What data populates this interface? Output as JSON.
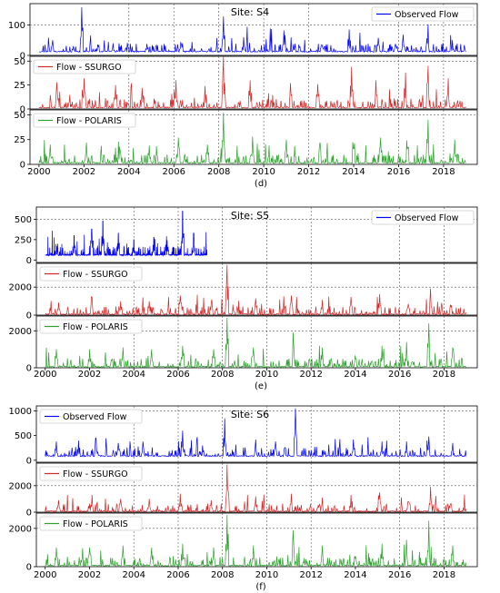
{
  "chart_data": [
    {
      "type": "line",
      "title": "Site: S4",
      "caption": "(d)",
      "x_ticks": [
        "2000",
        "2002",
        "2004",
        "2006",
        "2008",
        "2010",
        "2012",
        "2014",
        "2016",
        "2018"
      ],
      "xlim": [
        1999.6,
        2019.5
      ],
      "panels": [
        {
          "series_name": "Observed Flow",
          "color": "#0000ff",
          "legend": "top-right",
          "ylim": [
            0,
            170
          ],
          "y_ticks": [
            0,
            100
          ],
          "y_tick_labels": [
            "0",
            "100"
          ],
          "base": 11,
          "peak_years": [
            2000.6,
            2001.9,
            2002.6,
            2003.3,
            2004.8,
            2006.3,
            2008.2,
            2009.1,
            2010.9,
            2012.6,
            2013.8,
            2015.1,
            2016.2,
            2017.3,
            2018.4
          ],
          "peak_values": [
            50,
            158,
            55,
            40,
            38,
            42,
            128,
            60,
            82,
            55,
            85,
            58,
            68,
            102,
            50
          ],
          "seed": 11
        },
        {
          "series_name": "Flow - SSURGO",
          "color": "#d62728",
          "legend": "top-left",
          "ylim": [
            0,
            55
          ],
          "y_ticks": [
            0,
            25,
            50
          ],
          "y_tick_labels": [
            "0",
            "25",
            "50"
          ],
          "base": 1,
          "peak_years": [
            2000.8,
            2002.0,
            2003.4,
            2004.6,
            2006.1,
            2007.4,
            2008.2,
            2009.4,
            2011.2,
            2012.4,
            2013.9,
            2015.0,
            2016.3,
            2017.3,
            2018.2
          ],
          "peak_values": [
            28,
            32,
            25,
            22,
            30,
            24,
            55,
            30,
            27,
            26,
            44,
            30,
            38,
            45,
            32
          ],
          "seed": 23
        },
        {
          "series_name": "Flow - POLARIS",
          "color": "#2ca02c",
          "legend": "top-left",
          "ylim": [
            0,
            55
          ],
          "y_ticks": [
            0,
            25,
            50
          ],
          "y_tick_labels": [
            "0",
            "25",
            "50"
          ],
          "base": 1,
          "peak_years": [
            2000.5,
            2002.1,
            2003.6,
            2004.9,
            2006.2,
            2007.5,
            2008.2,
            2009.5,
            2011.0,
            2012.5,
            2014.0,
            2015.2,
            2016.4,
            2017.3,
            2018.5
          ],
          "peak_values": [
            20,
            22,
            18,
            19,
            27,
            20,
            52,
            28,
            25,
            22,
            35,
            27,
            38,
            45,
            25
          ],
          "seed": 37
        }
      ]
    },
    {
      "type": "line",
      "title": "Site: S5",
      "caption": "(e)",
      "x_ticks": [
        "2000",
        "2002",
        "2004",
        "2006",
        "2008",
        "2010",
        "2012",
        "2014",
        "2016",
        "2018"
      ],
      "xlim": [
        1999.6,
        2019.5
      ],
      "panels": [
        {
          "series_name": "Observed Flow",
          "color": "#0000ff",
          "legend": "top-right",
          "ylim": [
            -30,
            650
          ],
          "y_ticks": [
            0,
            250,
            500
          ],
          "y_tick_labels": [
            "0",
            "250",
            "500"
          ],
          "x_end": 2007.3,
          "base": 55,
          "peak_years": [
            2000.5,
            2001.3,
            2002.1,
            2002.6,
            2003.3,
            2004.0,
            2004.9,
            2005.5,
            2006.2,
            2006.7
          ],
          "peak_values": [
            160,
            300,
            380,
            480,
            330,
            250,
            280,
            240,
            600,
            330
          ],
          "seed": 51
        },
        {
          "series_name": "Flow - SSURGO",
          "color": "#d62728",
          "legend": "top-left",
          "ylim": [
            0,
            3700
          ],
          "y_ticks": [
            0,
            2000
          ],
          "y_tick_labels": [
            "0",
            "2000"
          ],
          "base": 30,
          "peak_years": [
            2000.6,
            2002.1,
            2003.4,
            2004.7,
            2006.1,
            2007.5,
            2008.2,
            2009.5,
            2011.1,
            2012.5,
            2013.8,
            2015.1,
            2016.4,
            2017.4,
            2018.3
          ],
          "peak_values": [
            900,
            1300,
            1000,
            1000,
            1400,
            900,
            3600,
            1200,
            1400,
            1100,
            1300,
            1500,
            1300,
            1900,
            1200
          ],
          "seed": 63
        },
        {
          "series_name": "Flow - POLARIS",
          "color": "#2ca02c",
          "legend": "top-left",
          "ylim": [
            0,
            2800
          ],
          "y_ticks": [
            0,
            2000
          ],
          "y_tick_labels": [
            "0",
            "2000"
          ],
          "base": 30,
          "peak_years": [
            2000.5,
            2002.0,
            2003.5,
            2004.8,
            2006.2,
            2007.6,
            2008.2,
            2009.4,
            2011.2,
            2012.5,
            2014.0,
            2015.2,
            2016.3,
            2017.3,
            2018.4
          ],
          "peak_values": [
            1000,
            1000,
            1100,
            1000,
            1200,
            1000,
            2700,
            1100,
            1900,
            1100,
            1100,
            1200,
            1400,
            2400,
            1100
          ],
          "seed": 77
        }
      ]
    },
    {
      "type": "line",
      "title": "Site: S6",
      "caption": "(f)",
      "x_ticks": [
        "2000",
        "2002",
        "2004",
        "2006",
        "2008",
        "2010",
        "2012",
        "2014",
        "2016",
        "2018"
      ],
      "xlim": [
        1999.6,
        2019.5
      ],
      "panels": [
        {
          "series_name": "Observed Flow",
          "color": "#0000ff",
          "legend": "top-left",
          "ylim": [
            -40,
            1100
          ],
          "y_ticks": [
            0,
            500,
            1000
          ],
          "y_tick_labels": [
            "0",
            "500",
            "1000"
          ],
          "base": 75,
          "peak_years": [
            2000.5,
            2001.5,
            2002.3,
            2003.3,
            2004.4,
            2006.2,
            2007.1,
            2008.1,
            2009.5,
            2010.4,
            2011.3,
            2012.6,
            2013.9,
            2015.2,
            2016.3,
            2017.3,
            2018.4
          ],
          "peak_values": [
            380,
            400,
            450,
            350,
            380,
            600,
            300,
            850,
            420,
            380,
            1050,
            380,
            420,
            380,
            380,
            480,
            350
          ],
          "seed": 91
        },
        {
          "series_name": "Flow - SSURGO",
          "color": "#d62728",
          "legend": "top-left",
          "ylim": [
            0,
            3700
          ],
          "y_ticks": [
            0,
            2000
          ],
          "y_tick_labels": [
            "0",
            "2000"
          ],
          "base": 30,
          "peak_years": [
            2000.6,
            2002.1,
            2003.4,
            2004.7,
            2006.1,
            2007.5,
            2008.2,
            2009.5,
            2011.1,
            2012.5,
            2013.8,
            2015.1,
            2016.4,
            2017.4,
            2018.3
          ],
          "peak_values": [
            900,
            1300,
            1000,
            1000,
            1400,
            900,
            3600,
            1200,
            1400,
            1100,
            1300,
            1500,
            1300,
            1900,
            1200
          ],
          "seed": 103
        },
        {
          "series_name": "Flow - POLARIS",
          "color": "#2ca02c",
          "legend": "top-left",
          "ylim": [
            0,
            2800
          ],
          "y_ticks": [
            0,
            2000
          ],
          "y_tick_labels": [
            "0",
            "2000"
          ],
          "base": 30,
          "peak_years": [
            2000.5,
            2002.0,
            2003.5,
            2004.8,
            2006.2,
            2007.6,
            2008.2,
            2009.4,
            2011.2,
            2012.5,
            2014.0,
            2015.2,
            2016.3,
            2017.3,
            2018.4
          ],
          "peak_values": [
            1000,
            1000,
            1100,
            1000,
            1200,
            1000,
            2700,
            1100,
            1900,
            1100,
            1100,
            1200,
            1400,
            2400,
            1100
          ],
          "seed": 117
        }
      ]
    }
  ]
}
